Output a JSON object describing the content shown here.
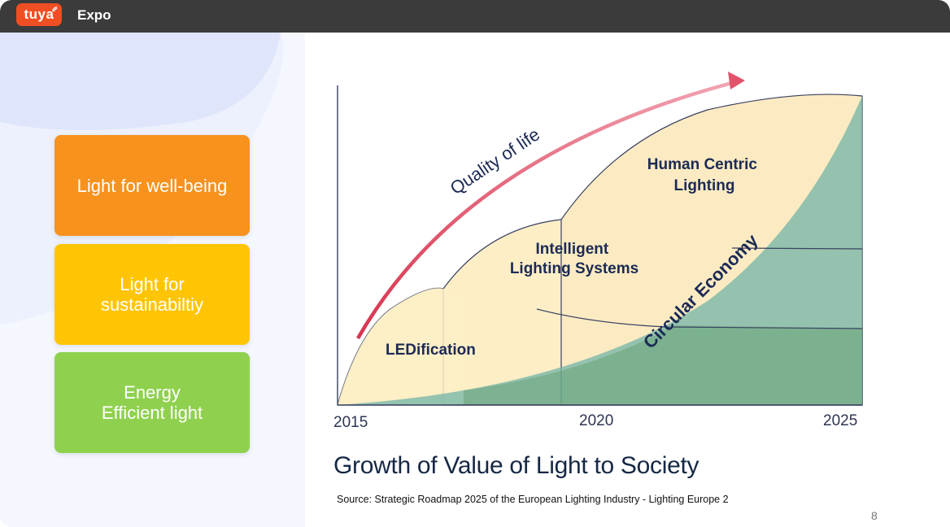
{
  "window": {
    "app_name": "Expo",
    "logo_text": "tuya",
    "logo_icon": "tuya-logo"
  },
  "cards": [
    {
      "label": "Light for well-being",
      "color": "#f7921e"
    },
    {
      "label": "Light for\nsustainabiltiy",
      "color": "#ffc505"
    },
    {
      "label": "Energy\nEfficient light",
      "color": "#8fd14e"
    }
  ],
  "chart_data": {
    "type": "area",
    "title": "Growth of Value of Light to Society",
    "source": "Source: Strategic Roadmap 2025 of the European Lighting Industry - Lighting Europe 2",
    "x_ticks": [
      "2015",
      "2020",
      "2025"
    ],
    "arrow_label": "Quality of life",
    "areas": [
      {
        "name": "LEDification",
        "color": "#fdeec6"
      },
      {
        "name": "Intelligent Lighting Systems",
        "color": "#fdeec6"
      },
      {
        "name": "Human Centric Lighting",
        "color": "#fdeec6"
      },
      {
        "name": "Circular Economy",
        "color": "#6fae8c"
      }
    ],
    "grid": false
  },
  "page": {
    "number": "8"
  }
}
